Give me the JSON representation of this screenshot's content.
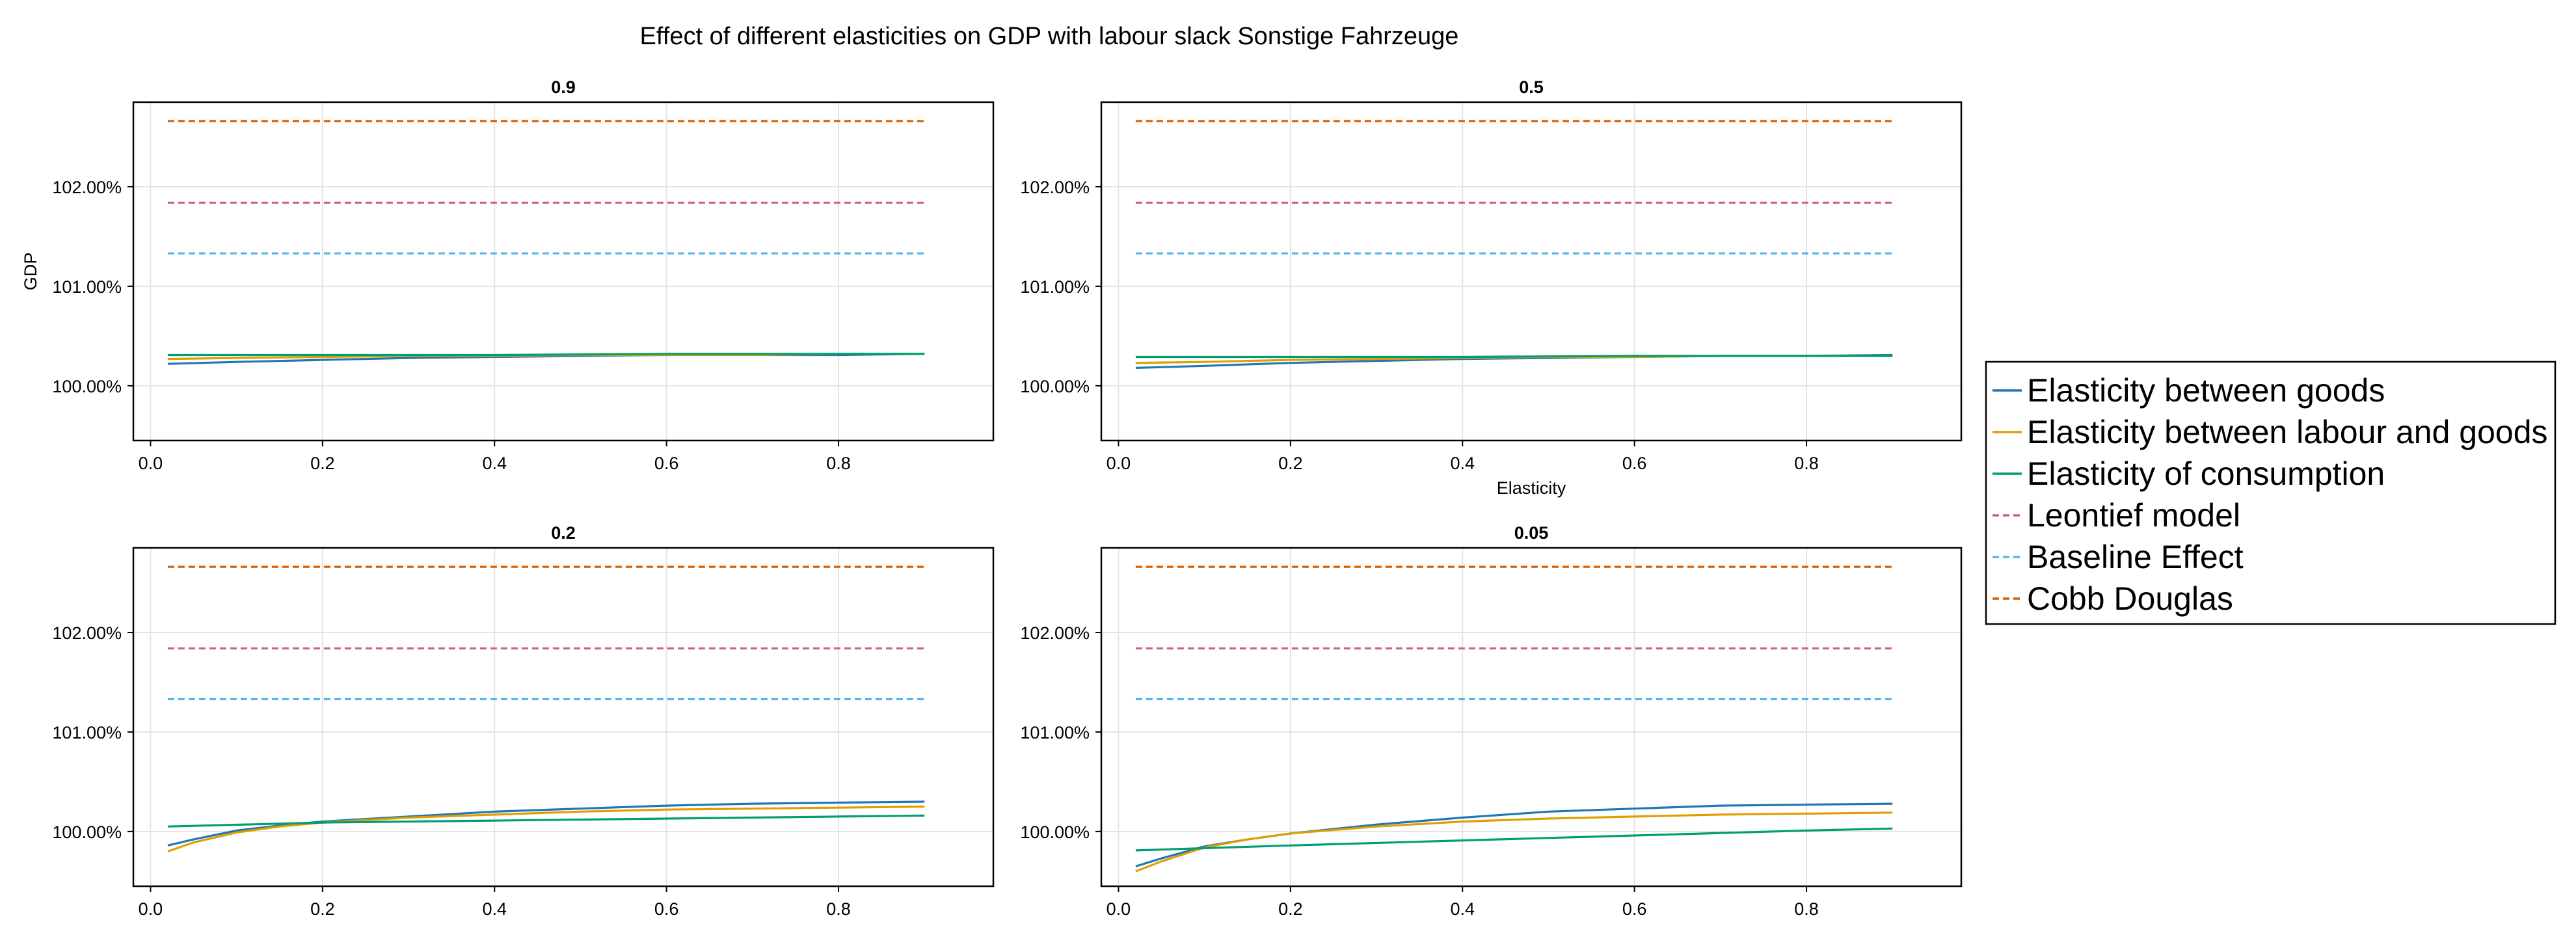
{
  "figure": {
    "title": "Effect of different elasticities on GDP with labour slack Sonstige Fahrzeuge"
  },
  "legend": {
    "position": "right",
    "entries": [
      {
        "label": "Elasticity between goods",
        "color": "#1f77b4",
        "dash": false
      },
      {
        "label": "Elasticity between labour and goods",
        "color": "#e09f00",
        "dash": false
      },
      {
        "label": "Elasticity of consumption",
        "color": "#009e73",
        "dash": false
      },
      {
        "label": "Leontief model",
        "color": "#cc6677",
        "dash": true
      },
      {
        "label": "Baseline Effect",
        "color": "#56b4e9",
        "dash": true
      },
      {
        "label": "Cobb Douglas",
        "color": "#d55e00",
        "dash": true
      }
    ]
  },
  "chart_data": [
    {
      "type": "line",
      "title": "0.9",
      "xlabel": "",
      "ylabel": "GDP",
      "xlim": [
        -0.02,
        0.98
      ],
      "ylim": [
        99.45,
        102.85
      ],
      "xticks": [
        "0.0",
        "0.2",
        "0.4",
        "0.6",
        "0.8"
      ],
      "yticks": [
        "100.00%",
        "101.00%",
        "102.00%"
      ],
      "grid": true,
      "series": [
        {
          "name": "Elasticity between goods",
          "x": [
            0.02,
            0.1,
            0.2,
            0.3,
            0.4,
            0.5,
            0.6,
            0.7,
            0.8,
            0.9
          ],
          "y": [
            100.22,
            100.24,
            100.26,
            100.28,
            100.29,
            100.3,
            100.31,
            100.31,
            100.31,
            100.32
          ]
        },
        {
          "name": "Elasticity between labour and goods",
          "x": [
            0.02,
            0.1,
            0.2,
            0.3,
            0.4,
            0.5,
            0.6,
            0.7,
            0.8,
            0.9
          ],
          "y": [
            100.27,
            100.28,
            100.29,
            100.3,
            100.3,
            100.31,
            100.31,
            100.31,
            100.32,
            100.32
          ]
        },
        {
          "name": "Elasticity of consumption",
          "x": [
            0.02,
            0.2,
            0.4,
            0.6,
            0.8,
            0.9
          ],
          "y": [
            100.31,
            100.31,
            100.31,
            100.32,
            100.32,
            100.32
          ]
        },
        {
          "name": "Leontief model",
          "x": [
            0.02,
            0.9
          ],
          "y": [
            101.84,
            101.84
          ]
        },
        {
          "name": "Baseline Effect",
          "x": [
            0.02,
            0.9
          ],
          "y": [
            101.33,
            101.33
          ]
        },
        {
          "name": "Cobb Douglas",
          "x": [
            0.02,
            0.9
          ],
          "y": [
            102.66,
            102.66
          ]
        }
      ]
    },
    {
      "type": "line",
      "title": "0.5",
      "xlabel": "Elasticity",
      "ylabel": "",
      "xlim": [
        -0.02,
        0.98
      ],
      "ylim": [
        99.45,
        102.85
      ],
      "xticks": [
        "0.0",
        "0.2",
        "0.4",
        "0.6",
        "0.8"
      ],
      "yticks": [
        "100.00%",
        "101.00%",
        "102.00%"
      ],
      "grid": true,
      "series": [
        {
          "name": "Elasticity between goods",
          "x": [
            0.02,
            0.1,
            0.2,
            0.3,
            0.4,
            0.5,
            0.6,
            0.7,
            0.8,
            0.9
          ],
          "y": [
            100.18,
            100.2,
            100.23,
            100.25,
            100.27,
            100.28,
            100.29,
            100.3,
            100.3,
            100.31
          ]
        },
        {
          "name": "Elasticity between labour and goods",
          "x": [
            0.02,
            0.1,
            0.2,
            0.3,
            0.4,
            0.5,
            0.6,
            0.7,
            0.8,
            0.9
          ],
          "y": [
            100.23,
            100.24,
            100.26,
            100.27,
            100.28,
            100.29,
            100.29,
            100.3,
            100.3,
            100.3
          ]
        },
        {
          "name": "Elasticity of consumption",
          "x": [
            0.02,
            0.2,
            0.4,
            0.6,
            0.8,
            0.9
          ],
          "y": [
            100.29,
            100.29,
            100.29,
            100.3,
            100.3,
            100.3
          ]
        },
        {
          "name": "Leontief model",
          "x": [
            0.02,
            0.9
          ],
          "y": [
            101.84,
            101.84
          ]
        },
        {
          "name": "Baseline Effect",
          "x": [
            0.02,
            0.9
          ],
          "y": [
            101.33,
            101.33
          ]
        },
        {
          "name": "Cobb Douglas",
          "x": [
            0.02,
            0.9
          ],
          "y": [
            102.66,
            102.66
          ]
        }
      ]
    },
    {
      "type": "line",
      "title": "0.2",
      "xlabel": "",
      "ylabel": "",
      "xlim": [
        -0.02,
        0.98
      ],
      "ylim": [
        99.45,
        102.85
      ],
      "xticks": [
        "0.0",
        "0.2",
        "0.4",
        "0.6",
        "0.8"
      ],
      "yticks": [
        "100.00%",
        "101.00%",
        "102.00%"
      ],
      "grid": true,
      "series": [
        {
          "name": "Elasticity between goods",
          "x": [
            0.02,
            0.05,
            0.1,
            0.15,
            0.2,
            0.3,
            0.4,
            0.5,
            0.6,
            0.7,
            0.8,
            0.9
          ],
          "y": [
            99.86,
            99.92,
            100.01,
            100.06,
            100.1,
            100.15,
            100.2,
            100.23,
            100.26,
            100.28,
            100.29,
            100.3
          ]
        },
        {
          "name": "Elasticity between labour and goods",
          "x": [
            0.02,
            0.05,
            0.1,
            0.15,
            0.2,
            0.3,
            0.4,
            0.5,
            0.6,
            0.7,
            0.8,
            0.9
          ],
          "y": [
            99.8,
            99.89,
            99.99,
            100.05,
            100.09,
            100.14,
            100.17,
            100.2,
            100.22,
            100.23,
            100.24,
            100.25
          ]
        },
        {
          "name": "Elasticity of consumption",
          "x": [
            0.02,
            0.2,
            0.4,
            0.6,
            0.8,
            0.9
          ],
          "y": [
            100.05,
            100.09,
            100.11,
            100.13,
            100.15,
            100.16
          ]
        },
        {
          "name": "Leontief model",
          "x": [
            0.02,
            0.9
          ],
          "y": [
            101.84,
            101.84
          ]
        },
        {
          "name": "Baseline Effect",
          "x": [
            0.02,
            0.9
          ],
          "y": [
            101.33,
            101.33
          ]
        },
        {
          "name": "Cobb Douglas",
          "x": [
            0.02,
            0.9
          ],
          "y": [
            102.66,
            102.66
          ]
        }
      ]
    },
    {
      "type": "line",
      "title": "0.05",
      "xlabel": "",
      "ylabel": "",
      "xlim": [
        -0.02,
        0.98
      ],
      "ylim": [
        99.45,
        102.85
      ],
      "xticks": [
        "0.0",
        "0.2",
        "0.4",
        "0.6",
        "0.8"
      ],
      "yticks": [
        "100.00%",
        "101.00%",
        "102.00%"
      ],
      "grid": true,
      "series": [
        {
          "name": "Elasticity between goods",
          "x": [
            0.02,
            0.05,
            0.1,
            0.15,
            0.2,
            0.3,
            0.4,
            0.5,
            0.6,
            0.7,
            0.8,
            0.9
          ],
          "y": [
            99.65,
            99.73,
            99.85,
            99.92,
            99.98,
            100.07,
            100.14,
            100.2,
            100.23,
            100.26,
            100.27,
            100.28
          ]
        },
        {
          "name": "Elasticity between labour and goods",
          "x": [
            0.02,
            0.05,
            0.1,
            0.15,
            0.2,
            0.3,
            0.4,
            0.5,
            0.6,
            0.7,
            0.8,
            0.9
          ],
          "y": [
            99.6,
            99.7,
            99.84,
            99.92,
            99.98,
            100.05,
            100.1,
            100.13,
            100.15,
            100.17,
            100.18,
            100.19
          ]
        },
        {
          "name": "Elasticity of consumption",
          "x": [
            0.02,
            0.2,
            0.4,
            0.6,
            0.8,
            0.9
          ],
          "y": [
            99.81,
            99.86,
            99.91,
            99.96,
            100.01,
            100.03
          ]
        },
        {
          "name": "Leontief model",
          "x": [
            0.02,
            0.9
          ],
          "y": [
            101.84,
            101.84
          ]
        },
        {
          "name": "Baseline Effect",
          "x": [
            0.02,
            0.9
          ],
          "y": [
            101.33,
            101.33
          ]
        },
        {
          "name": "Cobb Douglas",
          "x": [
            0.02,
            0.9
          ],
          "y": [
            102.66,
            102.66
          ]
        }
      ]
    }
  ]
}
